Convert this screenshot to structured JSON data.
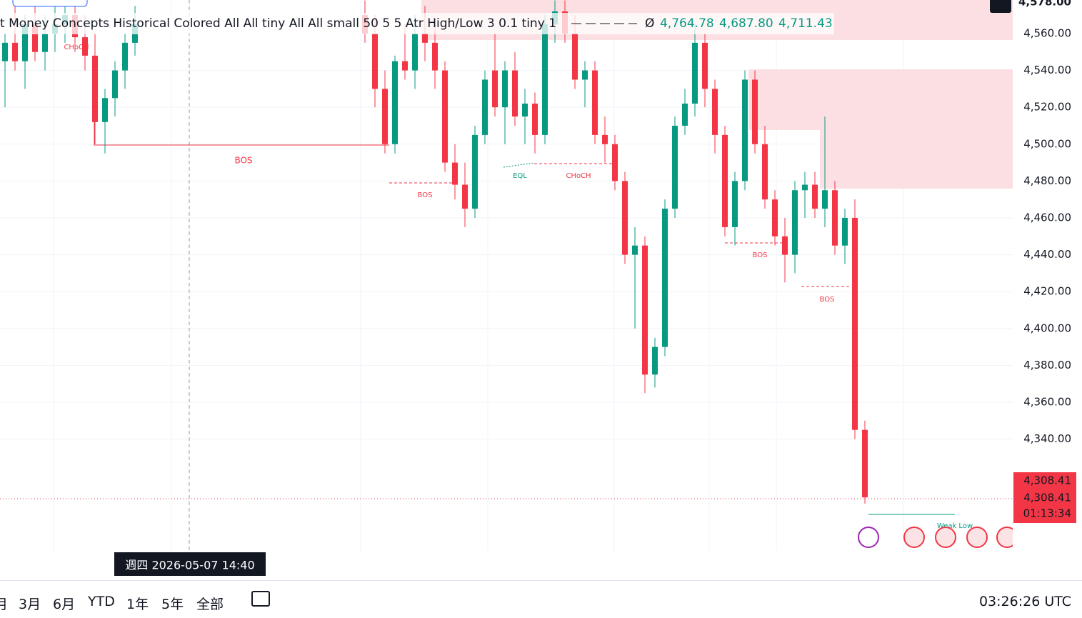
{
  "indicator_legend": {
    "text": "t Money Concepts Historical Colored All All tiny All All small 50 5 5 Atr High/Low 3 0.1 tiny 1",
    "symbol": "Ø",
    "values": [
      "4,764.78",
      "4,687.80",
      "4,711.43"
    ]
  },
  "price_axis": {
    "ylim": [
      4279,
      4578.2
    ],
    "top_label": "4,578.00",
    "ticks": [
      {
        "value": 4560,
        "label": "4,560.00"
      },
      {
        "value": 4540,
        "label": "4,540.00"
      },
      {
        "value": 4520,
        "label": "4,520.00"
      },
      {
        "value": 4500,
        "label": "4,500.00"
      },
      {
        "value": 4480,
        "label": "4,480.00"
      },
      {
        "value": 4460,
        "label": "4,460.00"
      },
      {
        "value": 4440,
        "label": "4,440.00"
      },
      {
        "value": 4420,
        "label": "4,420.00"
      },
      {
        "value": 4400,
        "label": "4,400.00"
      },
      {
        "value": 4380,
        "label": "4,380.00"
      },
      {
        "value": 4360,
        "label": "4,360.00"
      },
      {
        "value": 4340,
        "label": "4,340.00"
      }
    ]
  },
  "price_tags": {
    "last_price": "4,308.41",
    "close_price": "4,308.41",
    "countdown": "01:13:34"
  },
  "annotations": [
    "CHoCH",
    "BOS",
    "BOS",
    "EQL",
    "CHoCH",
    "BOS",
    "BOS",
    "Weak Low"
  ],
  "crosshair_date": "週四 2026-05-07   14:40",
  "time_buttons": [
    "月",
    "3月",
    "6月",
    "YTD",
    "1年",
    "5年",
    "全部"
  ],
  "clock": "03:26:26 UTC",
  "candles": [
    [
      4545,
      4560,
      4520,
      4555
    ],
    [
      4555,
      4575,
      4540,
      4545
    ],
    [
      4545,
      4570,
      4530,
      4565
    ],
    [
      4565,
      4575,
      4545,
      4550
    ],
    [
      4550,
      4570,
      4540,
      4560
    ],
    [
      4560,
      4575,
      4550,
      4565
    ],
    [
      4565,
      4578,
      4555,
      4570
    ],
    [
      4570,
      4578,
      4550,
      4558
    ],
    [
      4558,
      4570,
      4540,
      4548
    ],
    [
      4548,
      4560,
      4500,
      4512
    ],
    [
      4512,
      4530,
      4495,
      4525
    ],
    [
      4525,
      4545,
      4515,
      4540
    ],
    [
      4540,
      4560,
      4530,
      4555
    ],
    [
      4555,
      4575,
      4548,
      4565
    ],
    null,
    null,
    null,
    null,
    null,
    null,
    null,
    null,
    null,
    null,
    null,
    null,
    null,
    null,
    null,
    null,
    null,
    null,
    null,
    null,
    null,
    null,
    [
      4570,
      4578,
      4555,
      4560
    ],
    [
      4560,
      4570,
      4520,
      4530
    ],
    [
      4530,
      4540,
      4495,
      4500
    ],
    [
      4500,
      4548,
      4495,
      4545
    ],
    [
      4545,
      4565,
      4535,
      4540
    ],
    [
      4540,
      4570,
      4530,
      4560
    ],
    [
      4560,
      4575,
      4545,
      4555
    ],
    [
      4555,
      4565,
      4530,
      4540
    ],
    [
      4540,
      4545,
      4485,
      4490
    ],
    [
      4490,
      4500,
      4470,
      4478
    ],
    [
      4478,
      4490,
      4455,
      4465
    ],
    [
      4465,
      4510,
      4460,
      4505
    ],
    [
      4505,
      4540,
      4500,
      4535
    ],
    [
      4540,
      4560,
      4515,
      4520
    ],
    [
      4520,
      4545,
      4500,
      4540
    ],
    [
      4540,
      4550,
      4510,
      4515
    ],
    [
      4515,
      4530,
      4500,
      4522
    ],
    [
      4522,
      4528,
      4495,
      4505
    ],
    [
      4505,
      4570,
      4500,
      4565
    ],
    [
      4565,
      4578,
      4555,
      4572
    ],
    [
      4572,
      4578,
      4555,
      4560
    ],
    [
      4560,
      4570,
      4530,
      4535
    ],
    [
      4535,
      4545,
      4520,
      4540
    ],
    [
      4540,
      4545,
      4500,
      4505
    ],
    [
      4505,
      4515,
      4490,
      4500
    ],
    [
      4500,
      4505,
      4475,
      4480
    ],
    [
      4480,
      4485,
      4435,
      4440
    ],
    [
      4440,
      4455,
      4400,
      4445
    ],
    [
      4445,
      4450,
      4365,
      4375
    ],
    [
      4375,
      4395,
      4368,
      4390
    ],
    [
      4390,
      4470,
      4385,
      4465
    ],
    [
      4465,
      4515,
      4460,
      4510
    ],
    [
      4510,
      4530,
      4505,
      4522
    ],
    [
      4522,
      4565,
      4515,
      4555
    ],
    [
      4555,
      4560,
      4520,
      4530
    ],
    [
      4530,
      4535,
      4495,
      4505
    ],
    [
      4505,
      4510,
      4450,
      4455
    ],
    [
      4455,
      4485,
      4445,
      4480
    ],
    [
      4480,
      4540,
      4475,
      4535
    ],
    [
      4535,
      4540,
      4495,
      4500
    ],
    [
      4500,
      4510,
      4465,
      4470
    ],
    [
      4470,
      4475,
      4445,
      4450
    ],
    [
      4450,
      4460,
      4425,
      4440
    ],
    [
      4440,
      4480,
      4430,
      4475
    ],
    [
      4475,
      4485,
      4460,
      4478
    ],
    [
      4478,
      4485,
      4460,
      4465
    ],
    [
      4465,
      4515,
      4455,
      4475
    ],
    [
      4475,
      4480,
      4440,
      4445
    ],
    [
      4445,
      4465,
      4435,
      4460
    ],
    [
      4460,
      4470,
      4340,
      4345
    ],
    [
      4345,
      4350,
      4305,
      4308.41
    ]
  ]
}
